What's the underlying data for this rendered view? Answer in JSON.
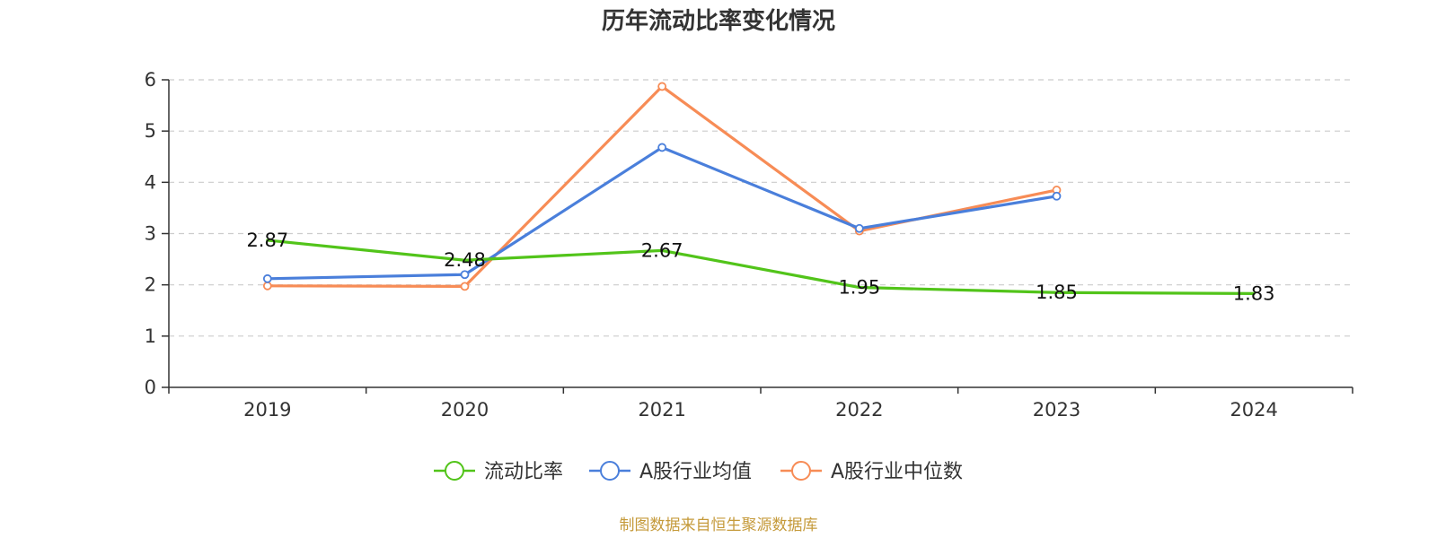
{
  "chart_data": {
    "type": "line",
    "title": "历年流动比率变化情况",
    "categories": [
      "2019",
      "2020",
      "2021",
      "2022",
      "2023",
      "2024"
    ],
    "ylim": [
      0,
      6
    ],
    "yticks": [
      "0",
      "1",
      "2",
      "3",
      "4",
      "5",
      "6"
    ],
    "grid": true,
    "legend_position": "bottom",
    "series": [
      {
        "name": "流动比率",
        "color": "#52c41a",
        "values": [
          2.87,
          2.48,
          2.67,
          1.95,
          1.85,
          1.83
        ],
        "labels": [
          "2.87",
          "2.48",
          "2.67",
          "1.95",
          "1.85",
          "1.83"
        ],
        "show_markers": false
      },
      {
        "name": "A股行业均值",
        "color": "#4a7fdb",
        "values": [
          2.12,
          2.2,
          4.68,
          3.1,
          3.73,
          null
        ],
        "show_markers": true
      },
      {
        "name": "A股行业中位数",
        "color": "#f78c56",
        "values": [
          1.98,
          1.97,
          5.87,
          3.05,
          3.85,
          null
        ],
        "show_markers": true
      }
    ],
    "source": "制图数据来自恒生聚源数据库"
  }
}
